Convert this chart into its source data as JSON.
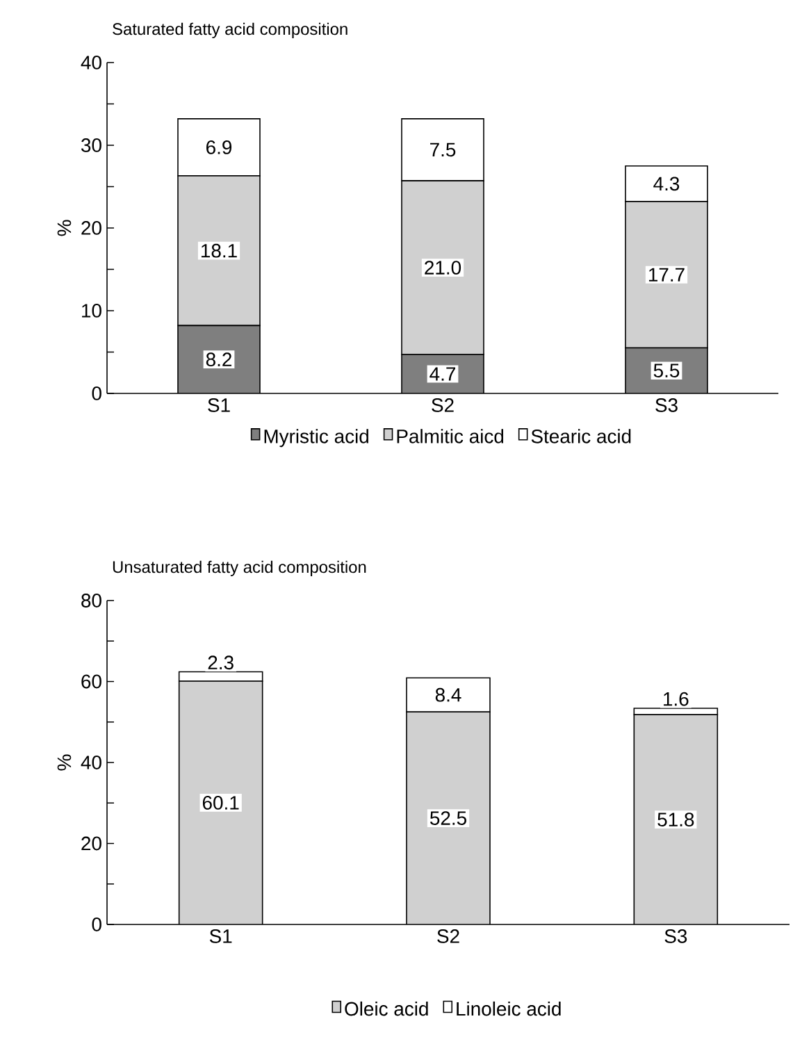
{
  "chart_data": [
    {
      "type": "bar",
      "title": "Saturated fatty acid composition",
      "ylabel": "%",
      "categories": [
        "S1",
        "S2",
        "S3"
      ],
      "stacked": true,
      "legend": "bottom",
      "ylim": [
        0,
        40
      ],
      "yticks": [
        0,
        {
          "value": 5,
          "label": null
        },
        10,
        {
          "value": 15,
          "label": null
        },
        20,
        {
          "value": 25,
          "label": null
        },
        30,
        {
          "value": 35,
          "label": null
        },
        40
      ],
      "series": [
        {
          "name": "Myristic acid",
          "color": "#7f7f7f",
          "values": [
            8.2,
            4.7,
            5.5
          ],
          "value_labels": [
            "8.2",
            "4.7",
            "5.5"
          ]
        },
        {
          "name": "Palmitic aicd",
          "color": "#d0d0d0",
          "values": [
            18.1,
            21.0,
            17.7
          ],
          "value_labels": [
            "18.1",
            "21.0",
            "17.7"
          ]
        },
        {
          "name": "Stearic acid",
          "color": "#ffffff",
          "values": [
            6.9,
            7.5,
            4.3
          ],
          "value_labels": [
            "6.9",
            "7.5",
            "4.3"
          ]
        }
      ]
    },
    {
      "type": "bar",
      "title": "Unsaturated fatty acid composition",
      "ylabel": "%",
      "categories": [
        "S1",
        "S2",
        "S3"
      ],
      "stacked": true,
      "data_labels": true,
      "legend": "bottom",
      "ylim": [
        0,
        80
      ],
      "yticks": [
        0,
        {
          "value": 10,
          "label": null
        },
        20,
        {
          "value": 30,
          "label": null
        },
        40,
        {
          "value": 50,
          "label": null
        },
        60,
        {
          "value": 70,
          "label": null
        },
        80
      ],
      "series": [
        {
          "name": "Oleic acid",
          "color": "#d0d0d0",
          "values": [
            60.1,
            52.5,
            51.8
          ]
        },
        {
          "name": "Linoleic acid",
          "color": "#ffffff",
          "values": [
            2.3,
            8.4,
            1.6
          ]
        }
      ]
    }
  ]
}
